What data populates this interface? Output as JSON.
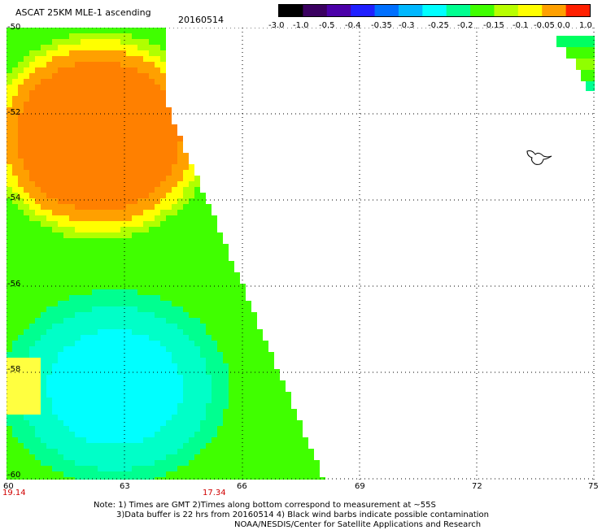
{
  "header": {
    "title": "ASCAT 25KM MLE-1 ascending",
    "date": "20160514"
  },
  "colorbar": {
    "labels": [
      "-3.0",
      "-1.0",
      "-0.5",
      "-0.4",
      "-0.35",
      "-0.3",
      "-0.25",
      "-0.2",
      "-0.15",
      "-0.1",
      "-0.05",
      "0.0",
      "1.0"
    ],
    "colors": [
      "#000000",
      "#3a0060",
      "#4b00a8",
      "#2020ff",
      "#0070ff",
      "#00b8ff",
      "#00ffff",
      "#00ff90",
      "#40ff00",
      "#b8ff00",
      "#ffff00",
      "#ffa000",
      "#ff2000"
    ]
  },
  "axes": {
    "y_labels": [
      "-50",
      "-52",
      "-54",
      "-56",
      "-58",
      "-60"
    ],
    "x_labels": [
      "60",
      "63",
      "66",
      "69",
      "72",
      "75"
    ],
    "time_labels": [
      "19.14",
      "17.34"
    ]
  },
  "colors": {
    "land": "#ffffff",
    "grid": "#000000",
    "time_label": "#d00000"
  },
  "notes": [
    "Note: 1) Times are GMT 2)Times along bottom correspond to measurement at ~55S",
    "3)Data buffer is 22 hrs from 20160514 4) Black wind barbs indicate possible contamination",
    "NOAA/NESDIS/Center for Satellite Applications and Research"
  ]
}
